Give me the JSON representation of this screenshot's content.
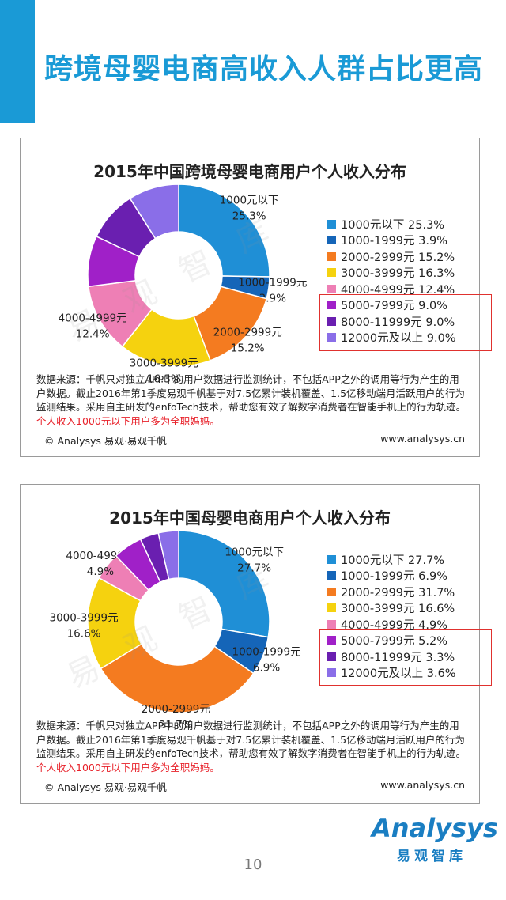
{
  "page": {
    "title": "跨境母婴电商高收入人群占比更高",
    "page_number": "10",
    "accent_color": "#1a9ad6"
  },
  "watermark": {
    "chars": [
      "易",
      "观",
      "智",
      "库"
    ]
  },
  "logo": {
    "word": "Analysys",
    "sub": "易观智库"
  },
  "chart_data": [
    {
      "type": "pie",
      "variant": "donut",
      "title": "2015年中国跨境母婴电商用户个人收入分布",
      "categories": [
        "1000元以下",
        "1000-1999元",
        "2000-2999元",
        "3000-3999元",
        "4000-4999元",
        "5000-7999元",
        "8000-11999元",
        "12000元及以上"
      ],
      "values": [
        25.3,
        3.9,
        15.2,
        16.3,
        12.4,
        9.0,
        9.0,
        9.0
      ],
      "value_labels": [
        "25.3%",
        "3.9%",
        "15.2%",
        "16.3%",
        "12.4%",
        "9.0%",
        "9.0%",
        "9.0%"
      ],
      "colors": [
        "#1f8fd6",
        "#1565b8",
        "#f47b20",
        "#f5d20f",
        "#ee7fb5",
        "#a020c8",
        "#6a1fb0",
        "#8a6ee8"
      ],
      "legend": [
        "1000元以下  25.3%",
        "1000-1999元  3.9%",
        "2000-2999元  15.2%",
        "3000-3999元  16.3%",
        "4000-4999元  12.4%",
        "5000-7999元  9.0%",
        "8000-11999元  9.0%",
        "12000元及以上  9.0%"
      ],
      "highlighted_legend": [
        "5000-7999元",
        "8000-11999元",
        "12000元及以上"
      ],
      "labeled_slices": [
        0,
        1,
        2,
        3,
        4
      ],
      "source_text": "数据来源：千帆只对独立APP中的用户数据进行监测统计，不包括APP之外的调用等行为产生的用户数据。截止2016年第1季度易观千帆基于对7.5亿累计装机覆盖、1.5亿移动端月活跃用户的行为监测结果。采用自主研发的enfoTech技术，帮助您有效了解数字消费者在智能手机上的行为轨迹。",
      "highlight_text": "个人收入1000元以下用户多为全职妈妈。",
      "copyright": "© Analysys 易观·易观千帆",
      "website": "www.analysys.cn"
    },
    {
      "type": "pie",
      "variant": "donut",
      "title": "2015年中国母婴电商用户个人收入分布",
      "categories": [
        "1000元以下",
        "1000-1999元",
        "2000-2999元",
        "3000-3999元",
        "4000-4999元",
        "5000-7999元",
        "8000-11999元",
        "12000元及以上"
      ],
      "values": [
        27.7,
        6.9,
        31.7,
        16.6,
        4.9,
        5.2,
        3.3,
        3.6
      ],
      "value_labels": [
        "27.7%",
        "6.9%",
        "31.7%",
        "16.6%",
        "4.9%",
        "5.2%",
        "3.3%",
        "3.6%"
      ],
      "colors": [
        "#1f8fd6",
        "#1565b8",
        "#f47b20",
        "#f5d20f",
        "#ee7fb5",
        "#a020c8",
        "#6a1fb0",
        "#8a6ee8"
      ],
      "legend": [
        "1000元以下  27.7%",
        "1000-1999元  6.9%",
        "2000-2999元  31.7%",
        "3000-3999元  16.6%",
        "4000-4999元  4.9%",
        "5000-7999元  5.2%",
        "8000-11999元  3.3%",
        "12000元及以上  3.6%"
      ],
      "highlighted_legend": [
        "5000-7999元",
        "8000-11999元",
        "12000元及以上"
      ],
      "labeled_slices": [
        0,
        1,
        2,
        3,
        4
      ],
      "source_text": "数据来源：千帆只对独立APP中的用户数据进行监测统计，不包括APP之外的调用等行为产生的用户数据。截止2016年第1季度易观千帆基于对7.5亿累计装机覆盖、1.5亿移动端月活跃用户的行为监测结果。采用自主研发的enfoTech技术，帮助您有效了解数字消费者在智能手机上的行为轨迹。",
      "highlight_text": "个人收入1000元以下用户多为全职妈妈。",
      "copyright": "© Analysys 易观·易观千帆",
      "website": "www.analysys.cn"
    }
  ]
}
